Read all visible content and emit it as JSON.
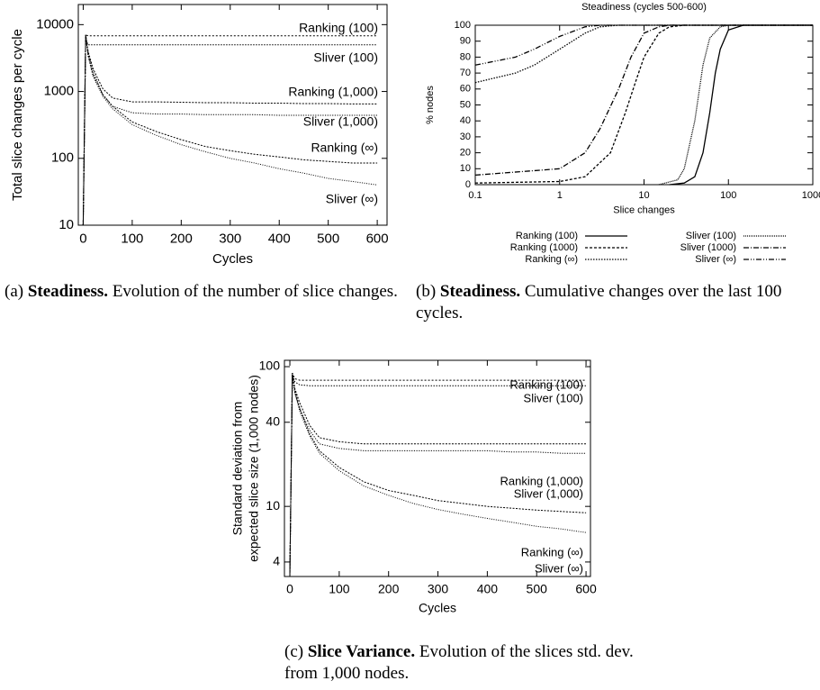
{
  "chart_data": [
    {
      "type": "line",
      "ylabel": "Total slice changes per cycle",
      "xlabel": "Cycles",
      "ylog": true,
      "xlim": [
        -10,
        620
      ],
      "ylim": [
        10,
        20000
      ],
      "xticks": [
        0,
        100,
        200,
        300,
        400,
        500,
        600
      ],
      "yticks": [
        10,
        100,
        1000,
        10000
      ],
      "x": [
        0,
        5,
        10,
        20,
        40,
        60,
        100,
        150,
        200,
        250,
        300,
        350,
        400,
        450,
        500,
        550,
        600
      ],
      "series": [
        {
          "name": "Ranking (100)",
          "color": "#000000",
          "values": [
            10,
            7000,
            6800,
            6800,
            6800,
            6800,
            6800,
            6800,
            6800,
            6800,
            6800,
            6800,
            6800,
            6800,
            6800,
            6800,
            6800
          ]
        },
        {
          "name": "Sliver (100)",
          "color": "#000000",
          "values": [
            10,
            6000,
            5000,
            5000,
            5000,
            5000,
            5000,
            5000,
            5000,
            5000,
            5000,
            5000,
            5000,
            5000,
            5000,
            5000,
            5000
          ]
        },
        {
          "name": "Ranking (1,000)",
          "color": "#000000",
          "values": [
            10,
            7000,
            4000,
            2200,
            1100,
            800,
            700,
            700,
            690,
            680,
            680,
            670,
            670,
            660,
            660,
            650,
            650
          ]
        },
        {
          "name": "Sliver (1,000)",
          "color": "#000000",
          "values": [
            10,
            7000,
            3800,
            2000,
            900,
            600,
            480,
            460,
            460,
            450,
            450,
            450,
            440,
            440,
            440,
            440,
            440
          ]
        },
        {
          "name": "Ranking (∞)",
          "color": "#000000",
          "values": [
            10,
            7000,
            3500,
            1800,
            900,
            600,
            350,
            250,
            190,
            150,
            130,
            115,
            105,
            95,
            90,
            85,
            85
          ]
        },
        {
          "name": "Sliver (∞)",
          "color": "#000000",
          "values": [
            10,
            7000,
            3400,
            1700,
            850,
            550,
            320,
            220,
            160,
            125,
            100,
            85,
            70,
            60,
            50,
            45,
            40
          ]
        }
      ]
    },
    {
      "type": "line",
      "title": "Steadiness (cycles 500-600)",
      "ylabel": "% nodes",
      "xlabel": "Slice changes",
      "xlog": true,
      "legend": "bottom",
      "xlim": [
        0.1,
        1000
      ],
      "ylim": [
        0,
        100
      ],
      "xticks": [
        0.1,
        1,
        10,
        100,
        1000
      ],
      "yticks": [
        0,
        10,
        20,
        30,
        40,
        50,
        60,
        70,
        80,
        90,
        100
      ],
      "series": [
        {
          "name": "Ranking (100)",
          "color": "#000000",
          "x": [
            20,
            30,
            40,
            50,
            60,
            70,
            80,
            100,
            150,
            200,
            1000
          ],
          "values": [
            0,
            1,
            5,
            20,
            45,
            70,
            85,
            97,
            100,
            100,
            100
          ]
        },
        {
          "name": "Ranking (1000)",
          "color": "#000000",
          "x": [
            0.1,
            1,
            2,
            4,
            6,
            8,
            10,
            15,
            20,
            30,
            1000
          ],
          "values": [
            1,
            2,
            5,
            20,
            45,
            65,
            80,
            95,
            99,
            100,
            100
          ]
        },
        {
          "name": "Ranking (∞)",
          "color": "#000000",
          "x": [
            0.1,
            0.3,
            0.5,
            1,
            2,
            3,
            5,
            1000
          ],
          "values": [
            64,
            70,
            75,
            85,
            95,
            99,
            100,
            100
          ]
        },
        {
          "name": "Sliver (100)",
          "color": "#000000",
          "x": [
            15,
            25,
            30,
            40,
            50,
            60,
            80,
            100,
            1000
          ],
          "values": [
            0,
            3,
            10,
            40,
            75,
            92,
            99,
            100,
            100
          ]
        },
        {
          "name": "Sliver (1000)",
          "color": "#000000",
          "x": [
            0.1,
            1,
            2,
            3,
            5,
            7,
            10,
            15,
            20,
            1000
          ],
          "values": [
            6,
            10,
            20,
            35,
            60,
            80,
            95,
            99,
            100,
            100
          ]
        },
        {
          "name": "Sliver (∞)",
          "color": "#000000",
          "x": [
            0.1,
            0.3,
            0.5,
            1,
            2,
            3,
            1000
          ],
          "values": [
            75,
            80,
            85,
            93,
            99,
            100,
            100
          ]
        }
      ]
    },
    {
      "type": "line",
      "ylabel": [
        "Standard deviation from",
        "expected slice size (1,000 nodes)"
      ],
      "xlabel": "Cycles",
      "ylog": true,
      "xlim": [
        -11,
        609
      ],
      "ylim": [
        3.15,
        111
      ],
      "xticks": [
        0,
        100,
        200,
        300,
        400,
        500,
        600
      ],
      "yticks": [
        4,
        10,
        40,
        100
      ],
      "x": [
        0,
        5,
        10,
        20,
        40,
        60,
        100,
        150,
        200,
        250,
        300,
        350,
        400,
        450,
        500,
        550,
        600
      ],
      "series": [
        {
          "name": "Ranking (100)",
          "color": "#000000",
          "values": [
            3.2,
            90,
            82,
            80,
            80,
            80,
            80,
            80,
            80,
            80,
            80,
            80,
            80,
            80,
            80,
            80,
            80
          ]
        },
        {
          "name": "Sliver (100)",
          "color": "#000000",
          "values": [
            3.2,
            88,
            78,
            74,
            73,
            73,
            73,
            73,
            73,
            73,
            73,
            73,
            73,
            73,
            73,
            73,
            73
          ]
        },
        {
          "name": "Ranking (1,000)",
          "color": "#000000",
          "values": [
            3.2,
            90,
            70,
            55,
            38,
            31,
            29,
            28,
            28,
            28,
            28,
            28,
            28,
            28,
            28,
            28,
            28
          ]
        },
        {
          "name": "Sliver (1,000)",
          "color": "#000000",
          "values": [
            3.2,
            88,
            65,
            50,
            35,
            28,
            26,
            25,
            25,
            25,
            25,
            25,
            25,
            24.5,
            24.5,
            24,
            24
          ]
        },
        {
          "name": "Ranking (∞)",
          "color": "#000000",
          "values": [
            3.2,
            90,
            68,
            50,
            33,
            25,
            19,
            15,
            13,
            12,
            11,
            10.5,
            10,
            9.7,
            9.4,
            9.2,
            9
          ]
        },
        {
          "name": "Sliver (∞)",
          "color": "#000000",
          "values": [
            3.2,
            88,
            66,
            48,
            32,
            24,
            18,
            14,
            12,
            10.5,
            9.5,
            8.8,
            8.2,
            7.7,
            7.2,
            6.9,
            6.5
          ]
        }
      ]
    }
  ],
  "captions": [
    {
      "label": "(a)",
      "bold": "Steadiness.",
      "text": "Evolution of the number of slice changes."
    },
    {
      "label": "(b)",
      "bold": "Steadiness.",
      "text": "Cumulative changes over the last 100 cycles."
    },
    {
      "label": "(c)",
      "bold": "Slice Variance.",
      "text": "Evolution of the slices std. dev. from 1,000 nodes."
    }
  ]
}
